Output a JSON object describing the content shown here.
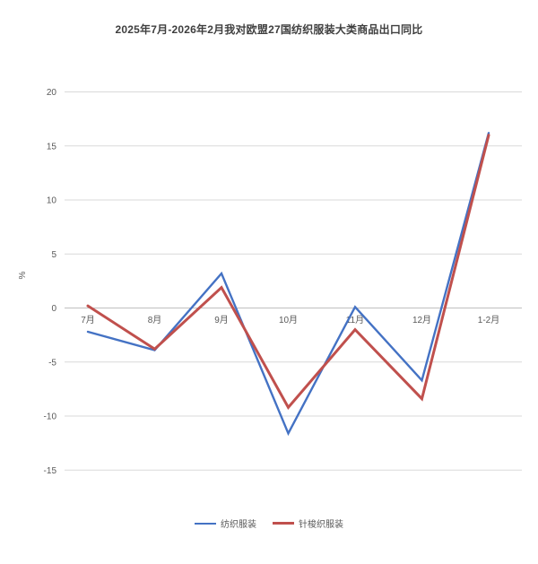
{
  "chart_data": {
    "type": "line",
    "title": "2025年7月-2026年2月我对欧盟27国纺织服装大类商品出口同比",
    "xlabel": "",
    "ylabel": "%",
    "categories": [
      "7月",
      "8月",
      "9月",
      "10月",
      "11月",
      "12月",
      "1-2月"
    ],
    "series": [
      {
        "name": "纺织服装",
        "color": "#4472C4",
        "width": 2.4,
        "values": [
          -2.2,
          -3.9,
          3.2,
          -11.6,
          0.1,
          -6.7,
          16.2
        ]
      },
      {
        "name": "针梭织服装",
        "color": "#C0504D",
        "width": 3.0,
        "values": [
          0.2,
          -3.8,
          1.9,
          -9.2,
          -2.0,
          -8.4,
          16.0
        ]
      }
    ],
    "ylim": [
      -15,
      20
    ],
    "yticks": [
      20,
      15,
      10,
      5,
      0,
      -5,
      -10,
      -15
    ],
    "grid": true,
    "legend_position": "bottom",
    "colors": {
      "background": "#ffffff",
      "gridline": "#d9d9d9",
      "zero_axis_line": "#bfbfbf",
      "tick_label": "#595959",
      "title_text": "#3f3f3f",
      "legend_text": "#595959"
    }
  }
}
